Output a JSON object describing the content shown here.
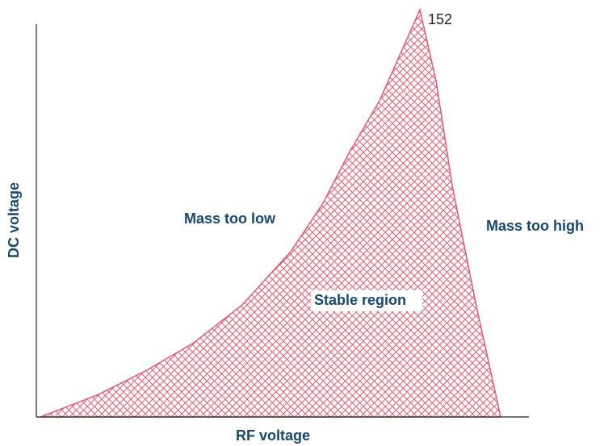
{
  "peak_label": "152",
  "regions": {
    "low": "Mass too low",
    "high": "Mass too high",
    "stable": "Stable region"
  },
  "axes": {
    "y_label": "DC voltage",
    "x_label": "RF voltage"
  }
}
